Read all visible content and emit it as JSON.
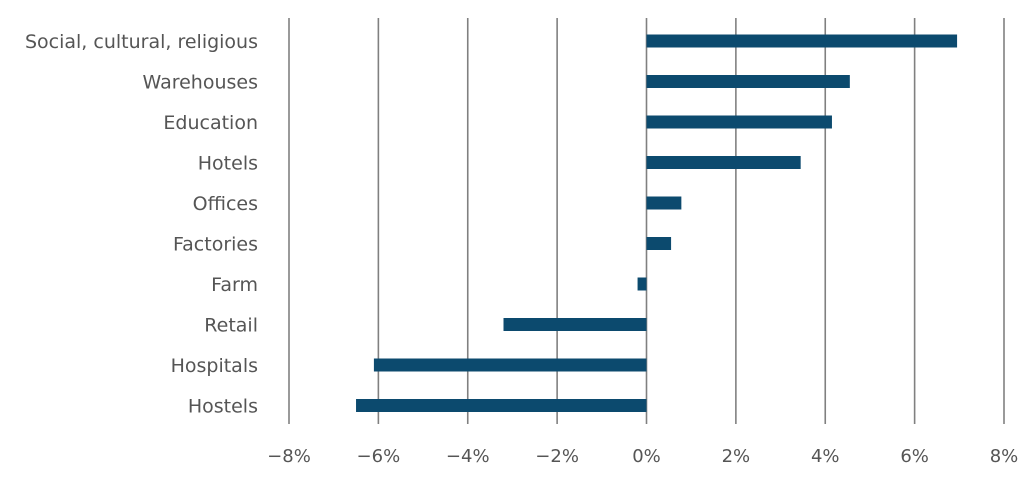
{
  "chart_data": {
    "type": "bar",
    "orientation": "horizontal",
    "title": "",
    "xlabel": "",
    "ylabel": "",
    "categories": [
      "Social, cultural, religious",
      "Warehouses",
      "Education",
      "Hotels",
      "Offices",
      "Factories",
      "Farm",
      "Retail",
      "Hospitals",
      "Hostels"
    ],
    "values": [
      6.95,
      4.55,
      4.15,
      3.45,
      0.78,
      0.55,
      -0.2,
      -3.2,
      -6.1,
      -6.5
    ],
    "xlim": [
      -8,
      8
    ],
    "ticks": [
      -8,
      -6,
      -4,
      -2,
      0,
      2,
      4,
      6,
      8
    ],
    "tick_labels": [
      "−8%",
      "−6%",
      "−4%",
      "−2%",
      "0%",
      "2%",
      "4%",
      "6%",
      "8%"
    ],
    "grid": true,
    "legend": "none",
    "colors": {
      "bar": "#0c4a6e",
      "grid": "#808080",
      "text": "#555555"
    }
  }
}
